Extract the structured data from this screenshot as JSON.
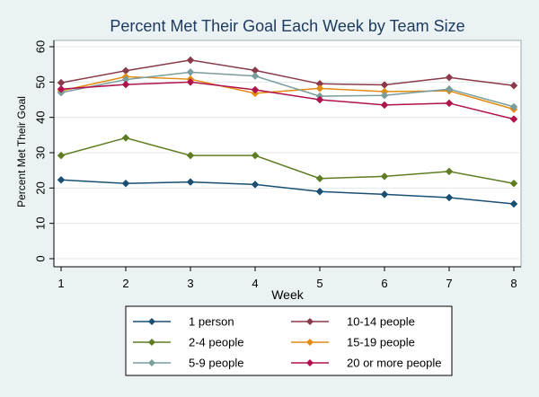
{
  "chart_data": {
    "type": "line",
    "title": "Percent Met Their Goal Each Week by Team Size",
    "xlabel": "Week",
    "ylabel": "Percent Met Their Goal",
    "x": [
      1,
      2,
      3,
      4,
      5,
      6,
      7,
      8
    ],
    "xlim": [
      1,
      8
    ],
    "ylim": [
      0,
      60
    ],
    "yticks": [
      0,
      10,
      20,
      30,
      40,
      50,
      60
    ],
    "grid": true,
    "legend_position": "bottom",
    "series": [
      {
        "name": "1 person",
        "color": "#1b4f72",
        "values": [
          22.3,
          21.3,
          21.7,
          21.0,
          19.0,
          18.2,
          17.3,
          15.5
        ]
      },
      {
        "name": "10-14 people",
        "color": "#8a3a4a",
        "values": [
          49.8,
          53.2,
          56.2,
          53.3,
          49.5,
          49.2,
          51.3,
          49.0
        ]
      },
      {
        "name": "2-4 people",
        "color": "#5e7d23",
        "values": [
          29.2,
          34.2,
          29.2,
          29.2,
          22.7,
          23.3,
          24.7,
          21.3
        ]
      },
      {
        "name": "15-19 people",
        "color": "#e38b12",
        "values": [
          47.5,
          51.5,
          50.8,
          46.8,
          48.2,
          47.3,
          47.5,
          42.3
        ]
      },
      {
        "name": "5-9 people",
        "color": "#7a9d9d",
        "values": [
          47.0,
          50.7,
          52.8,
          51.7,
          46.0,
          46.2,
          48.0,
          43.0
        ]
      },
      {
        "name": "20 or more people",
        "color": "#b0124e",
        "values": [
          48.0,
          49.3,
          50.0,
          47.8,
          45.0,
          43.5,
          44.0,
          39.5
        ]
      }
    ]
  }
}
